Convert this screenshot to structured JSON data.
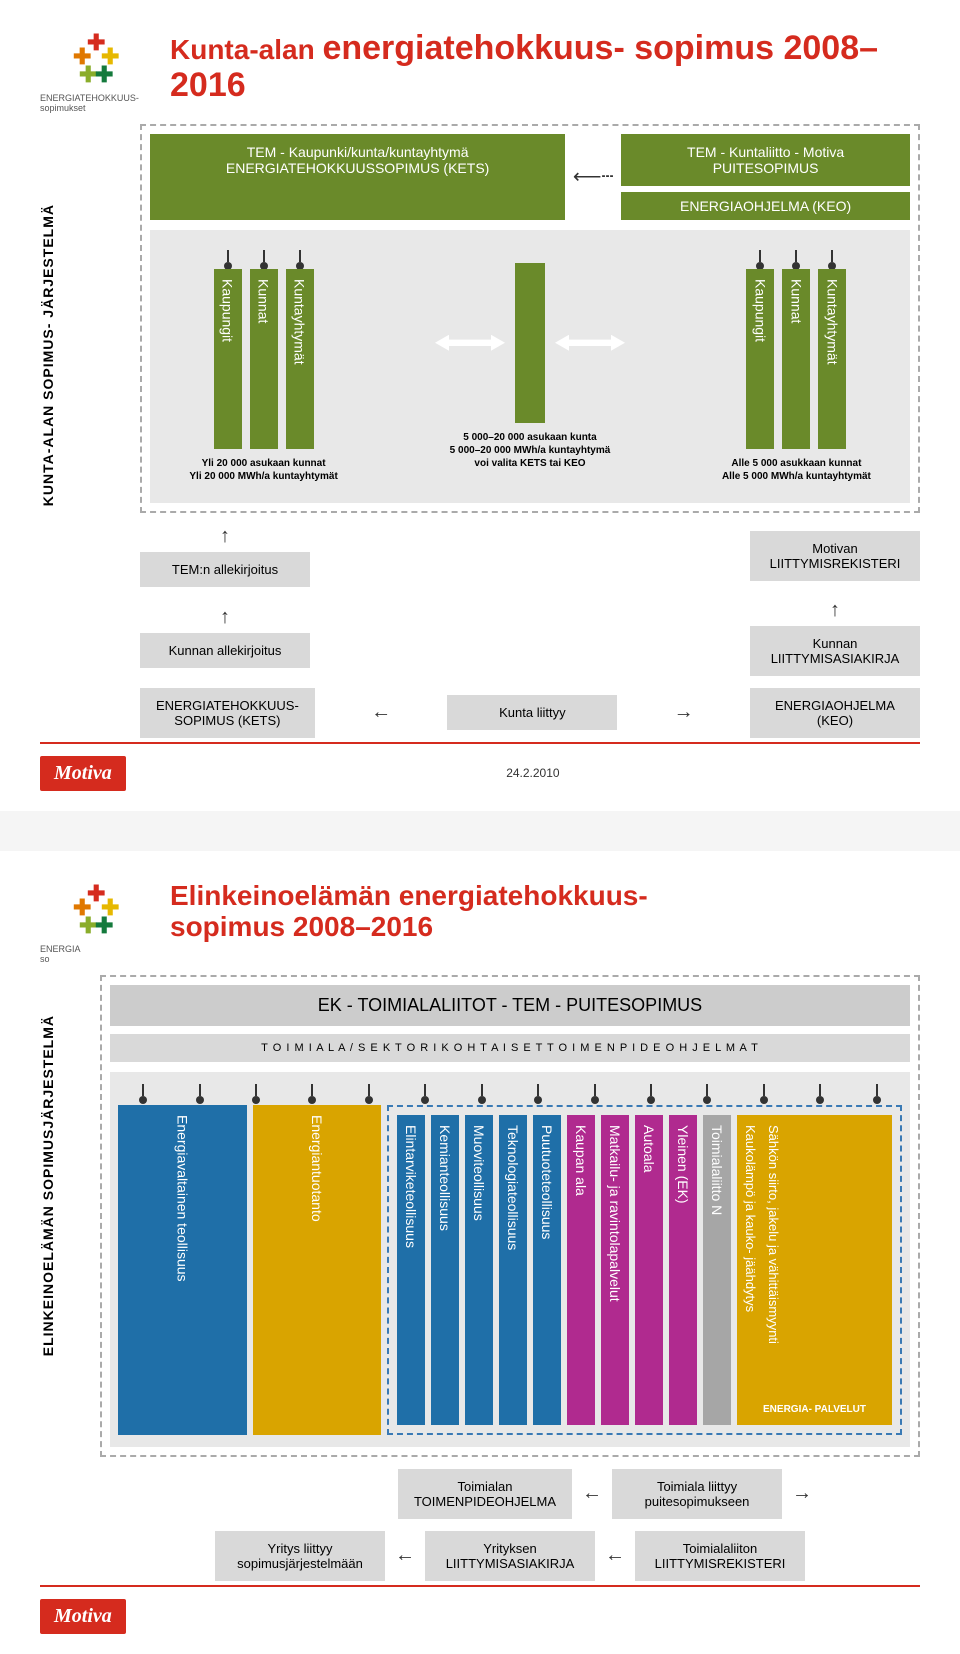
{
  "logo": {
    "text": "ENERGIATEHOKKUUS-\nsopimukset",
    "colors": [
      "#d52b1e",
      "#e07800",
      "#e6b800",
      "#8aad2a",
      "#147a3c"
    ]
  },
  "slide1": {
    "title_a": "Kunta-alan ",
    "title_b": "energiatehokkuus-\nsopimus 2008–2016",
    "vert_label": "KUNTA-ALAN SOPIMUS-\nJÄRJESTELMÄ",
    "top_left": "TEM - Kaupunki/kunta/kuntayhtymä\nENERGIATEHOKKUUSSOPIMUS (KETS)",
    "top_right": "TEM - Kuntaliitto - Motiva\nPUITESOPIMUS",
    "keo_band": "ENERGIAOHJELMA (KEO)",
    "left_bars": [
      "Kaupungit",
      "Kunnat",
      "Kuntayhtymät"
    ],
    "right_bars": [
      "Kaupungit",
      "Kunnat",
      "Kuntayhtymät"
    ],
    "cap_left": "Yli 20 000 asukaan kunnat\nYli 20 000 MWh/a kuntayhtymät",
    "cap_mid": "5 000–20 000 asukaan kunta\n5 000–20 000 MWh/a kuntayhtymä\nvoi valita KETS tai KEO",
    "cap_right": "Alle 5 000 asukkaan kunnat\nAlle 5 000 MWh/a kuntayhtymät",
    "flow": {
      "tem_sign": "TEM:n allekirjoitus",
      "kunta_sign": "Kunnan allekirjoitus",
      "kets": "ENERGIATEHOKKUUS-\nSOPIMUS (KETS)",
      "motivan": "Motivan\nLIITTYMISREKISTERI",
      "kunnan_doc": "Kunnan\nLIITTYMISASIAKIRJA",
      "keo": "ENERGIAOHJELMA\n(KEO)",
      "join": "Kunta liittyy"
    },
    "date": "24.2.2010"
  },
  "slide2": {
    "title": "Elinkeinoelämän energiatehokkuus-\nsopimus 2008–2016",
    "vert_label": "ELINKEINOELÄMÄN SOPIMUSJÄRJESTELMÄ",
    "header": "EK - TOIMIALALIITOT - TEM - PUITESOPIMUS",
    "subheader": "T O I M I A L A / S E K T O R I K O H T A I S E T   T O I M E N P I D E O H J E L M A T",
    "sectors": [
      {
        "label": "Energiavaltainen teollisuus",
        "color": "blue",
        "dashed": false
      },
      {
        "label": "Energiantuotanto",
        "color": "orange",
        "dashed": false
      },
      {
        "label": "Elintarviketeollisuus",
        "color": "blue",
        "dashed": true
      },
      {
        "label": "Kemianteollisuus",
        "color": "blue",
        "dashed": true
      },
      {
        "label": "Muoviteollisuus",
        "color": "blue",
        "dashed": true
      },
      {
        "label": "Teknologiateollisuus",
        "color": "blue",
        "dashed": true
      },
      {
        "label": "Puutuoteteollisuus",
        "color": "blue",
        "dashed": true
      },
      {
        "label": "Kaupan ala",
        "color": "purple",
        "dashed": true
      },
      {
        "label": "Matkailu- ja ravintolapalvelut",
        "color": "purple",
        "dashed": true
      },
      {
        "label": "Autoala",
        "color": "purple",
        "dashed": true
      },
      {
        "label": "Yleinen (EK)",
        "color": "purple",
        "dashed": true
      },
      {
        "label": "Toimialaliitto N",
        "color": "gray",
        "dashed": true
      }
    ],
    "ep1": "Kaukolämpö ja kauko-\njäähdytys",
    "ep2": "Sähkön siirto, jakelu ja\nvähittäismyynti",
    "ep_footer": "ENERGIA-\nPALVELUT",
    "flow": {
      "toimialan": "Toimialan\nTOIMENPIDEOHJELMA",
      "toimiala_join": "Toimiala liittyy\npuitesopimukseen",
      "yritys_join": "Yritys liittyy\nsopimusjärjestelmään",
      "yritys_doc": "Yrityksen\nLIITTYMISASIAKIRJA",
      "toimialaliiton": "Toimialaliiton\nLIITTYMISREKISTERI"
    }
  },
  "brand": "Motiva"
}
